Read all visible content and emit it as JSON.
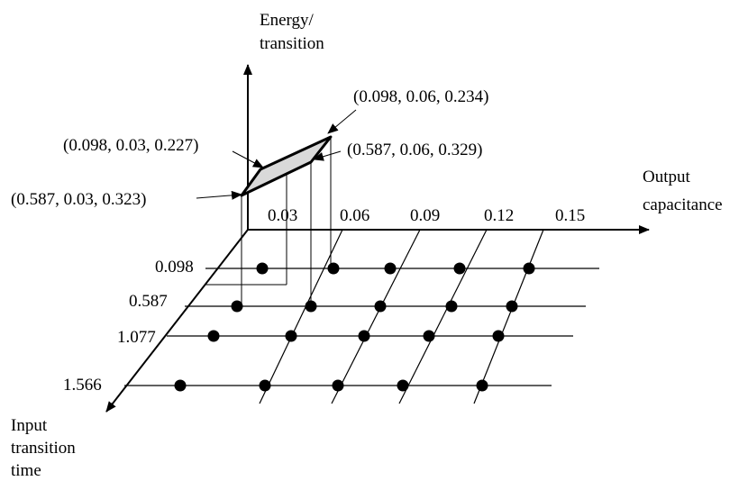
{
  "axes": {
    "z_label_line1": "Energy/",
    "z_label_line2": "transition",
    "x_label_line1": "Output",
    "x_label_line2": "capacitance",
    "y_label_line1": "Input",
    "y_label_line2": "transition",
    "y_label_line3": "time"
  },
  "output_capacitance_ticks": [
    "0.03",
    "0.06",
    "0.09",
    "0.12",
    "0.15"
  ],
  "input_transition_ticks": [
    "0.098",
    "0.587",
    "1.077",
    "1.566"
  ],
  "points": [
    {
      "label": "(0.098, 0.06, 0.234)"
    },
    {
      "label": "(0.098, 0.03, 0.227)"
    },
    {
      "label": "(0.587, 0.06, 0.329)"
    },
    {
      "label": "(0.587, 0.03, 0.323)"
    }
  ],
  "colors": {
    "line": "#000000",
    "surface": "#d9d9d9",
    "background": "#ffffff"
  }
}
